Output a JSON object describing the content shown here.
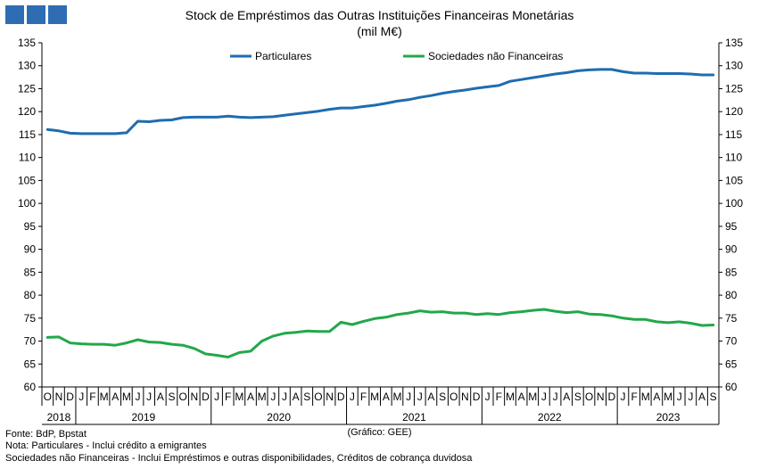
{
  "header": {
    "logo_icon": "blue-squares-logo",
    "title_line1": "Stock de Empréstimos das Outras Instituições Financeiras Monetárias",
    "title_line2": "(mil M€)"
  },
  "footer": {
    "source": "Fonte: BdP, Bpstat",
    "note1": "Nota: Particulares - Inclui crédito a emigrantes",
    "note2": "Sociedades não Financeiras - Inclui Empréstimos e outras disponibilidades, Créditos de cobrança duvidosa",
    "credit": "(Gráfico: GEE)"
  },
  "chart_data": {
    "type": "line",
    "title": "Stock de Empréstimos das Outras Instituições Financeiras Monetárias (mil M€)",
    "x": [
      "2018-10",
      "2018-11",
      "2018-12",
      "2019-01",
      "2019-02",
      "2019-03",
      "2019-04",
      "2019-05",
      "2019-06",
      "2019-07",
      "2019-08",
      "2019-09",
      "2019-10",
      "2019-11",
      "2019-12",
      "2020-01",
      "2020-02",
      "2020-03",
      "2020-04",
      "2020-05",
      "2020-06",
      "2020-07",
      "2020-08",
      "2020-09",
      "2020-10",
      "2020-11",
      "2020-12",
      "2021-01",
      "2021-02",
      "2021-03",
      "2021-04",
      "2021-05",
      "2021-06",
      "2021-07",
      "2021-08",
      "2021-09",
      "2021-10",
      "2021-11",
      "2021-12",
      "2022-01",
      "2022-02",
      "2022-03",
      "2022-04",
      "2022-05",
      "2022-06",
      "2022-07",
      "2022-08",
      "2022-09",
      "2022-10",
      "2022-11",
      "2022-12",
      "2023-01",
      "2023-02",
      "2023-03",
      "2023-04",
      "2023-05",
      "2023-06",
      "2023-07",
      "2023-08",
      "2023-09"
    ],
    "month_labels": [
      "O",
      "N",
      "D",
      "J",
      "F",
      "M",
      "A",
      "M",
      "J",
      "J",
      "A",
      "S",
      "O",
      "N",
      "D",
      "J",
      "F",
      "M",
      "A",
      "M",
      "J",
      "J",
      "A",
      "S",
      "O",
      "N",
      "D",
      "J",
      "F",
      "M",
      "A",
      "M",
      "J",
      "J",
      "A",
      "S",
      "O",
      "N",
      "D",
      "J",
      "F",
      "M",
      "A",
      "M",
      "J",
      "J",
      "A",
      "S",
      "O",
      "N",
      "D",
      "J",
      "F",
      "M",
      "A",
      "M",
      "J",
      "J",
      "A",
      "S"
    ],
    "year_labels": [
      {
        "year": "2018",
        "from": 0,
        "to": 2
      },
      {
        "year": "2019",
        "from": 3,
        "to": 14
      },
      {
        "year": "2020",
        "from": 15,
        "to": 26
      },
      {
        "year": "2021",
        "from": 27,
        "to": 38
      },
      {
        "year": "2022",
        "from": 39,
        "to": 50
      },
      {
        "year": "2023",
        "from": 51,
        "to": 59
      }
    ],
    "series": [
      {
        "name": "Particulares",
        "color": "#1f6cb0",
        "values": [
          116.1,
          115.8,
          115.3,
          115.2,
          115.2,
          115.2,
          115.2,
          115.4,
          117.9,
          117.8,
          118.1,
          118.2,
          118.7,
          118.8,
          118.8,
          118.8,
          119.0,
          118.8,
          118.7,
          118.8,
          118.9,
          119.2,
          119.5,
          119.8,
          120.1,
          120.5,
          120.8,
          120.8,
          121.1,
          121.4,
          121.8,
          122.3,
          122.6,
          123.1,
          123.5,
          124.0,
          124.4,
          124.7,
          125.1,
          125.4,
          125.7,
          126.6,
          127.0,
          127.4,
          127.8,
          128.2,
          128.5,
          128.9,
          129.1,
          129.2,
          129.2,
          128.7,
          128.4,
          128.4,
          128.3,
          128.3,
          128.3,
          128.2,
          128.0,
          128.0
        ]
      },
      {
        "name": "Sociedades não Financeiras",
        "color": "#21a84a",
        "values": [
          70.8,
          70.9,
          69.6,
          69.4,
          69.3,
          69.3,
          69.1,
          69.6,
          70.3,
          69.8,
          69.7,
          69.3,
          69.1,
          68.4,
          67.2,
          66.9,
          66.5,
          67.5,
          67.8,
          70.0,
          71.1,
          71.7,
          71.9,
          72.2,
          72.1,
          72.1,
          74.1,
          73.6,
          74.3,
          74.9,
          75.2,
          75.8,
          76.1,
          76.6,
          76.3,
          76.4,
          76.1,
          76.1,
          75.8,
          76.0,
          75.8,
          76.2,
          76.4,
          76.7,
          76.9,
          76.5,
          76.2,
          76.4,
          75.9,
          75.8,
          75.5,
          75.0,
          74.7,
          74.7,
          74.2,
          74.0,
          74.2,
          73.9,
          73.4,
          73.5
        ]
      }
    ],
    "ylim": [
      60,
      135
    ],
    "yticks": [
      60,
      65,
      70,
      75,
      80,
      85,
      90,
      95,
      100,
      105,
      110,
      115,
      120,
      125,
      130,
      135
    ],
    "secondary_y_axis": true,
    "grid": false,
    "legend_position": "top"
  }
}
